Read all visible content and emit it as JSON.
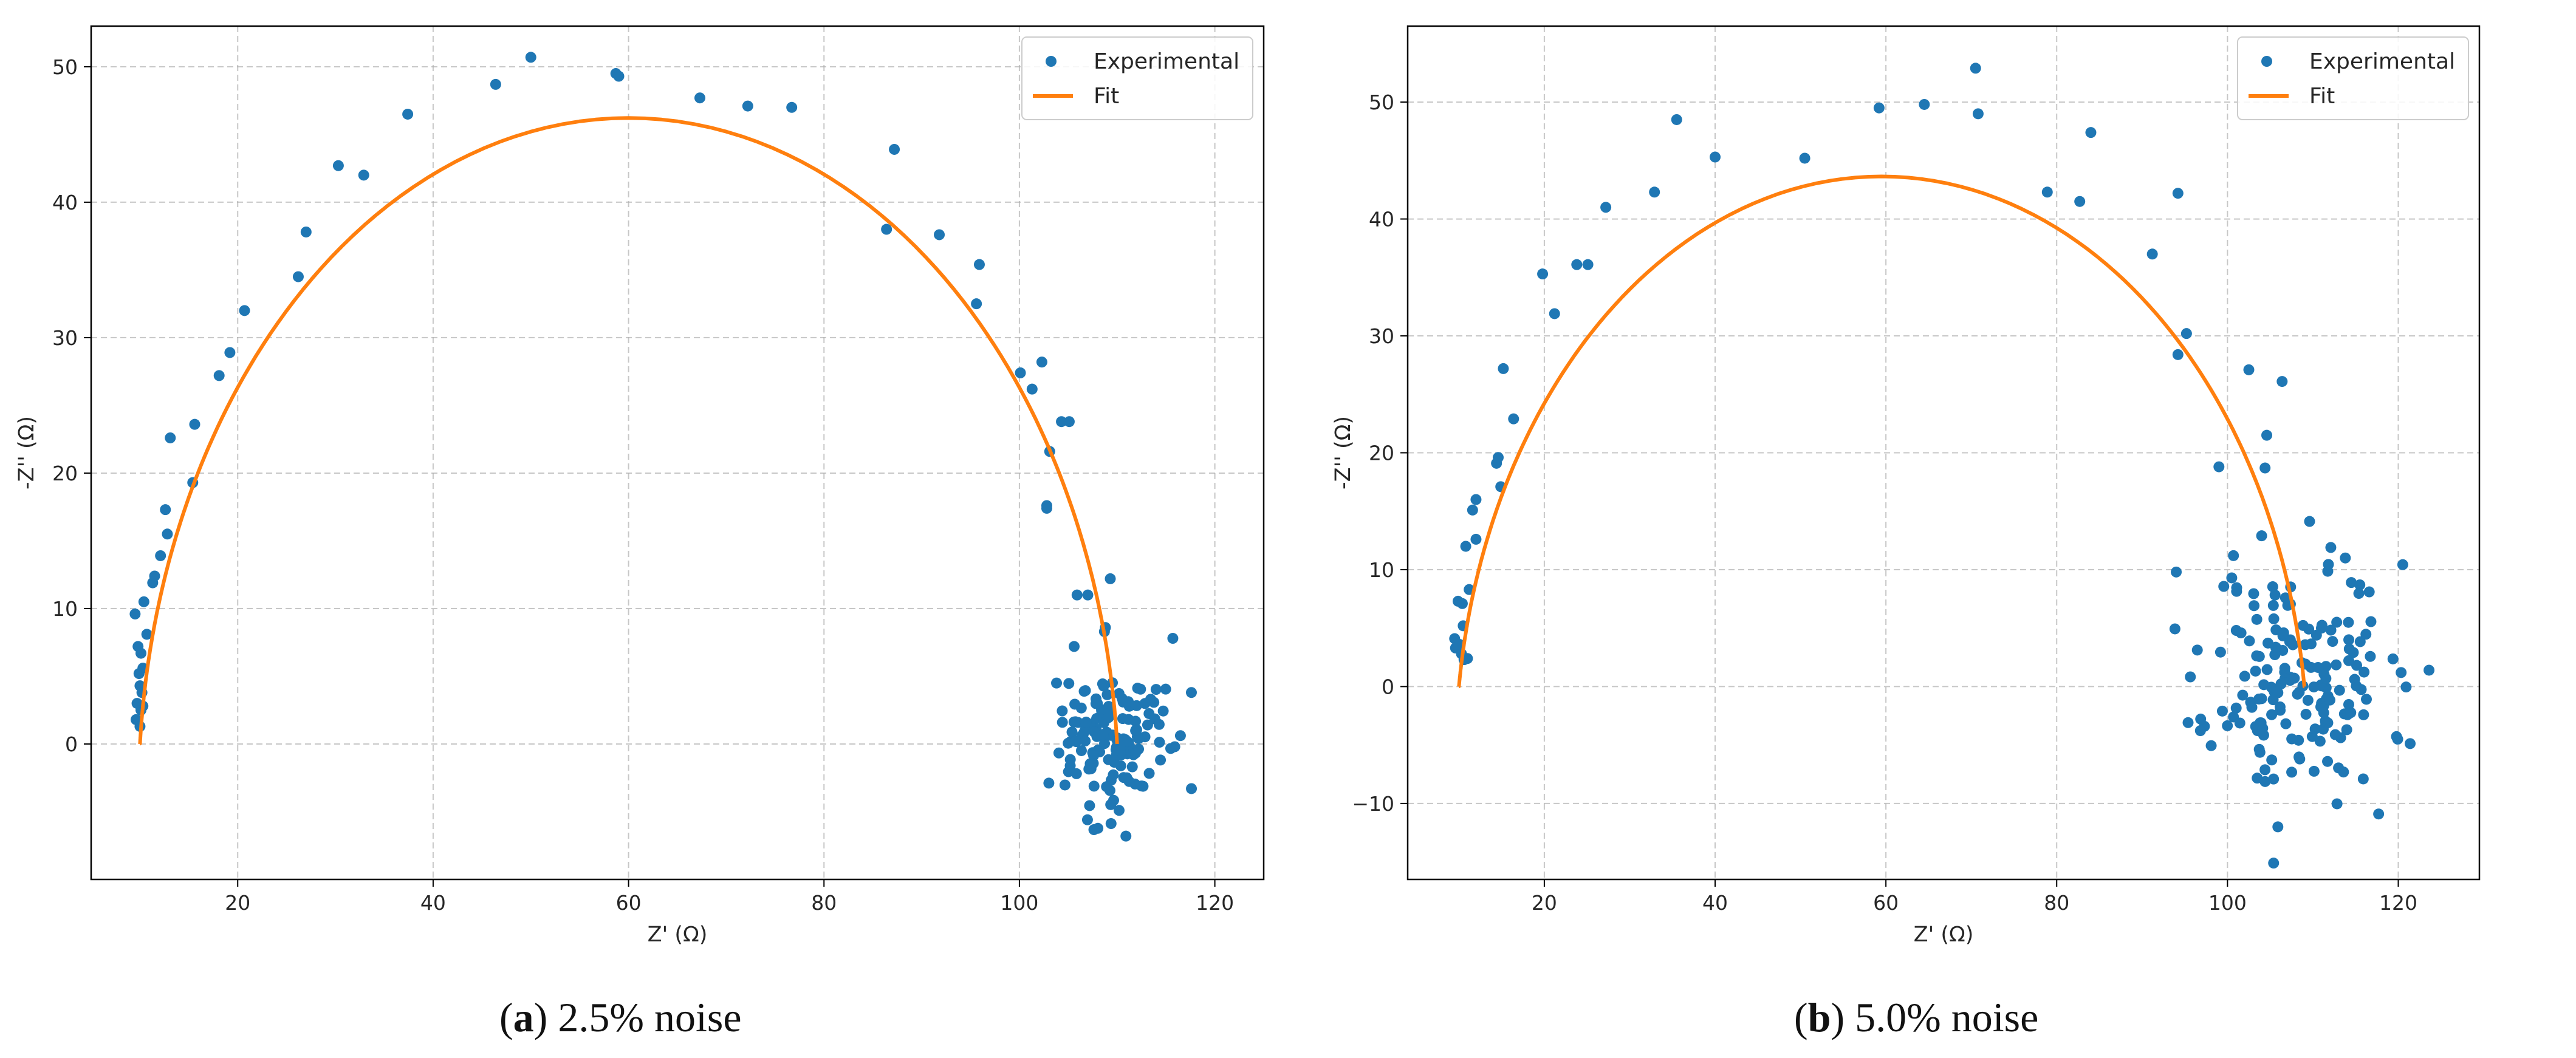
{
  "panels": [
    {
      "caption": {
        "letter": "a",
        "text": "2.5% noise"
      },
      "chart_data": {
        "type": "scatter",
        "xlabel": "Z' (Ω)",
        "ylabel": "-Z'' (Ω)",
        "xlim": [
          5,
          125
        ],
        "ylim": [
          -10,
          53
        ],
        "xticks": [
          20,
          40,
          60,
          80,
          100,
          120
        ],
        "yticks": [
          0,
          10,
          20,
          30,
          40,
          50
        ],
        "grid": true,
        "legend_position": "top-right",
        "fit": {
          "name": "Fit",
          "color": "#ff7f0e",
          "r0": 10,
          "r1": 100,
          "n": 0.95
        },
        "series": [
          {
            "name": "Experimental",
            "color": "#1f77b4",
            "type": "scatter",
            "points": [
              [
                9.5,
                9.6
              ],
              [
                10.4,
                10.5
              ],
              [
                10.7,
                8.1
              ],
              [
                9.8,
                7.2
              ],
              [
                10.1,
                6.7
              ],
              [
                10.3,
                5.6
              ],
              [
                9.9,
                5.2
              ],
              [
                10.0,
                4.3
              ],
              [
                10.2,
                3.8
              ],
              [
                9.7,
                3.0
              ],
              [
                10.1,
                2.5
              ],
              [
                10.3,
                2.8
              ],
              [
                9.6,
                1.8
              ],
              [
                10.0,
                1.3
              ],
              [
                11.3,
                11.9
              ],
              [
                11.5,
                12.4
              ],
              [
                12.1,
                13.9
              ],
              [
                12.8,
                15.5
              ],
              [
                12.6,
                17.3
              ],
              [
                13.1,
                22.6
              ],
              [
                15.6,
                23.6
              ],
              [
                15.4,
                19.3
              ],
              [
                18.1,
                27.2
              ],
              [
                19.2,
                28.9
              ],
              [
                20.7,
                32.0
              ],
              [
                26.2,
                34.5
              ],
              [
                27.0,
                37.8
              ],
              [
                30.3,
                42.7
              ],
              [
                32.9,
                42.0
              ],
              [
                37.4,
                46.5
              ],
              [
                46.4,
                48.7
              ],
              [
                50.0,
                50.7
              ],
              [
                58.7,
                49.5
              ],
              [
                59.0,
                49.3
              ],
              [
                67.3,
                47.7
              ],
              [
                72.2,
                47.1
              ],
              [
                76.7,
                47.0
              ],
              [
                87.2,
                43.9
              ],
              [
                86.4,
                38.0
              ],
              [
                91.8,
                37.6
              ],
              [
                95.9,
                35.4
              ],
              [
                95.6,
                32.5
              ],
              [
                100.1,
                27.4
              ],
              [
                102.3,
                28.2
              ],
              [
                101.3,
                26.2
              ],
              [
                103.1,
                21.6
              ],
              [
                104.3,
                23.8
              ],
              [
                105.1,
                23.8
              ],
              [
                102.8,
                17.6
              ],
              [
                102.8,
                17.4
              ],
              [
                105.9,
                11.0
              ],
              [
                107.0,
                11.0
              ],
              [
                109.3,
                12.2
              ],
              [
                108.8,
                8.6
              ],
              [
                108.7,
                8.3
              ],
              [
                105.6,
                7.2
              ],
              [
                115.7,
                7.8
              ],
              [
                117.6,
                3.8
              ],
              [
                115.9,
                -0.2
              ],
              [
                110.9,
                -6.8
              ],
              [
                103.8,
                4.5
              ],
              [
                104.4,
                1.6
              ],
              [
                105.2,
                -1.6
              ],
              [
                110.2,
                -4.9
              ],
              [
                112.5,
                -3.1
              ]
            ],
            "cluster": {
              "cx": 109.5,
              "cy": 0.2,
              "sx": 2.6,
              "sy": 2.3,
              "n": 140,
              "seed": 7
            }
          }
        ]
      }
    },
    {
      "caption": {
        "letter": "b",
        "text": "5.0% noise"
      },
      "chart_data": {
        "type": "scatter",
        "xlabel": "Z' (Ω)",
        "ylabel": "-Z'' (Ω)",
        "xlim": [
          4,
          129.5
        ],
        "ylim": [
          -16.5,
          56.5
        ],
        "xticks": [
          20,
          40,
          60,
          80,
          100,
          120
        ],
        "yticks": [
          -10,
          0,
          10,
          20,
          30,
          40,
          50
        ],
        "grid": true,
        "legend_position": "top-right",
        "fit": {
          "name": "Fit",
          "color": "#ff7f0e",
          "r0": 10,
          "r1": 99,
          "n": 0.92
        },
        "series": [
          {
            "name": "Experimental",
            "color": "#1f77b4",
            "type": "scatter",
            "points": [
              [
                9.5,
                4.1
              ],
              [
                9.6,
                3.3
              ],
              [
                10.1,
                3.6
              ],
              [
                10.3,
                2.8
              ],
              [
                10.6,
                2.3
              ],
              [
                11.0,
                2.4
              ],
              [
                10.5,
                5.2
              ],
              [
                9.9,
                7.3
              ],
              [
                10.4,
                7.1
              ],
              [
                11.2,
                8.3
              ],
              [
                10.8,
                12.0
              ],
              [
                12.0,
                12.6
              ],
              [
                11.6,
                15.1
              ],
              [
                12.0,
                16.0
              ],
              [
                14.4,
                19.1
              ],
              [
                14.6,
                19.6
              ],
              [
                14.9,
                17.1
              ],
              [
                15.2,
                27.2
              ],
              [
                16.4,
                22.9
              ],
              [
                19.8,
                35.3
              ],
              [
                21.2,
                31.9
              ],
              [
                23.8,
                36.1
              ],
              [
                25.1,
                36.1
              ],
              [
                27.2,
                41.0
              ],
              [
                32.9,
                42.3
              ],
              [
                35.5,
                48.5
              ],
              [
                40.0,
                45.3
              ],
              [
                50.5,
                45.2
              ],
              [
                59.2,
                49.5
              ],
              [
                64.5,
                49.8
              ],
              [
                70.5,
                52.9
              ],
              [
                70.8,
                49.0
              ],
              [
                78.9,
                42.3
              ],
              [
                82.7,
                41.5
              ],
              [
                84.0,
                47.4
              ],
              [
                91.2,
                37.0
              ],
              [
                94.2,
                42.2
              ],
              [
                94.2,
                28.4
              ],
              [
                95.2,
                30.2
              ],
              [
                102.5,
                27.1
              ],
              [
                106.4,
                26.1
              ],
              [
                104.6,
                21.5
              ],
              [
                104.4,
                18.7
              ],
              [
                94.0,
                9.8
              ],
              [
                99.0,
                18.8
              ],
              [
                100.5,
                9.3
              ],
              [
                100.7,
                11.2
              ],
              [
                104.0,
                12.9
              ],
              [
                112.1,
                11.9
              ],
              [
                113.8,
                11.0
              ],
              [
                123.6,
                1.4
              ],
              [
                117.7,
                -10.9
              ],
              [
                105.4,
                -15.1
              ],
              [
                105.9,
                -12.0
              ],
              [
                97.3,
                -3.4
              ],
              [
                99.4,
                -2.1
              ],
              [
                100.7,
                -2.6
              ],
              [
                115.9,
                -7.9
              ],
              [
                114.5,
                8.9
              ],
              [
                115.5,
                8.7
              ],
              [
                116.6,
                8.1
              ]
            ],
            "cluster": {
              "cx": 108.5,
              "cy": 0.5,
              "sx": 5.2,
              "sy": 5.0,
              "n": 165,
              "seed": 11
            }
          }
        ]
      }
    }
  ]
}
